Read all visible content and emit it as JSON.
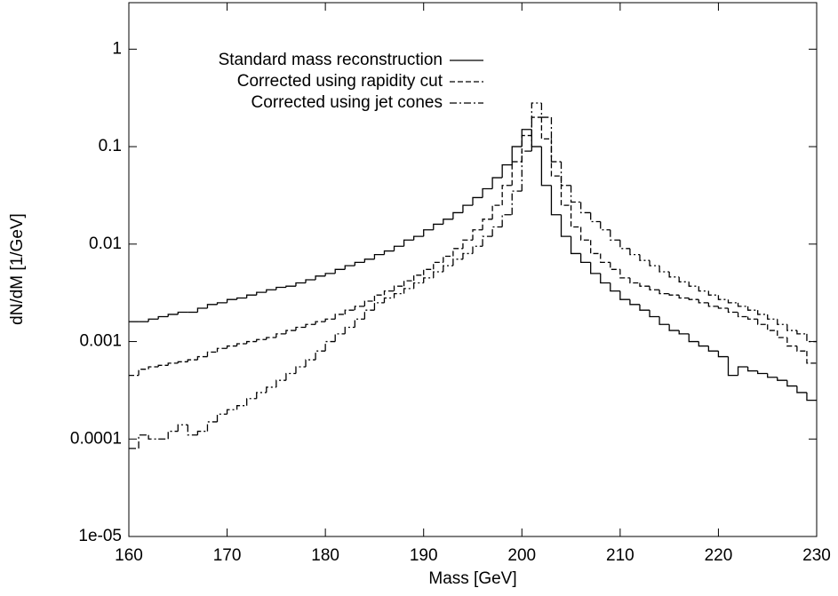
{
  "chart_data": {
    "type": "histogram",
    "xlabel": "Mass [GeV]",
    "ylabel": "dN/dM [1/GeV]",
    "log_y": true,
    "legend": "upper left",
    "xlim": [
      160,
      230
    ],
    "xticks": [
      160,
      170,
      180,
      190,
      200,
      210,
      220,
      230
    ],
    "ylim": [
      1e-05,
      3
    ],
    "yticks": [
      1,
      0.1,
      0.01,
      0.001,
      0.0001,
      {
        "value": 1e-05,
        "label": "1e-05"
      }
    ],
    "bins": [
      160,
      161,
      162,
      163,
      164,
      165,
      166,
      167,
      168,
      169,
      170,
      171,
      172,
      173,
      174,
      175,
      176,
      177,
      178,
      179,
      180,
      181,
      182,
      183,
      184,
      185,
      186,
      187,
      188,
      189,
      190,
      191,
      192,
      193,
      194,
      195,
      196,
      197,
      198,
      199,
      200,
      201,
      202,
      203,
      204,
      205,
      206,
      207,
      208,
      209,
      210,
      211,
      212,
      213,
      214,
      215,
      216,
      217,
      218,
      219,
      220,
      221,
      222,
      223,
      224,
      225,
      226,
      227,
      228,
      229,
      230
    ],
    "series": [
      {
        "name": "Standard mass reconstruction",
        "color": "#000000",
        "line_style": "solid",
        "values": [
          0.0016,
          0.0016,
          0.0017,
          0.0018,
          0.0019,
          0.002,
          0.002,
          0.0022,
          0.0024,
          0.0025,
          0.0027,
          0.0028,
          0.003,
          0.0032,
          0.0034,
          0.0036,
          0.0037,
          0.004,
          0.0043,
          0.0047,
          0.005,
          0.0055,
          0.006,
          0.0065,
          0.007,
          0.0078,
          0.0085,
          0.0095,
          0.011,
          0.012,
          0.014,
          0.016,
          0.018,
          0.021,
          0.025,
          0.03,
          0.037,
          0.048,
          0.065,
          0.1,
          0.15,
          0.1,
          0.04,
          0.02,
          0.012,
          0.008,
          0.0065,
          0.005,
          0.004,
          0.0033,
          0.0027,
          0.0024,
          0.0021,
          0.0018,
          0.0015,
          0.0013,
          0.0012,
          0.001,
          0.0009,
          0.0008,
          0.0007,
          0.00045,
          0.00055,
          0.0005,
          0.00047,
          0.00043,
          0.0004,
          0.00035,
          0.0003,
          0.00025
        ]
      },
      {
        "name": "Corrected using rapidity cut",
        "color": "#000000",
        "line_style": "dashed",
        "values": [
          0.00045,
          0.00052,
          0.00055,
          0.00057,
          0.0006,
          0.00062,
          0.00065,
          0.0007,
          0.00078,
          0.00085,
          0.0009,
          0.00095,
          0.001,
          0.00105,
          0.0011,
          0.0012,
          0.0013,
          0.0014,
          0.0015,
          0.0016,
          0.0017,
          0.0019,
          0.0021,
          0.0023,
          0.0026,
          0.003,
          0.0033,
          0.0037,
          0.0042,
          0.0048,
          0.0055,
          0.0065,
          0.0075,
          0.009,
          0.011,
          0.014,
          0.018,
          0.025,
          0.04,
          0.07,
          0.13,
          0.2,
          0.12,
          0.05,
          0.025,
          0.015,
          0.011,
          0.008,
          0.0065,
          0.0055,
          0.0045,
          0.004,
          0.0037,
          0.0034,
          0.0031,
          0.003,
          0.0028,
          0.0027,
          0.0025,
          0.0023,
          0.0022,
          0.002,
          0.0018,
          0.0017,
          0.0015,
          0.0013,
          0.0011,
          0.0009,
          0.0008,
          0.0006
        ]
      },
      {
        "name": "Corrected using jet cones",
        "color": "#000000",
        "line_style": "dashdot",
        "values": [
          8e-05,
          0.00011,
          0.0001,
          0.0001,
          0.00012,
          0.00014,
          0.00011,
          0.00012,
          0.00015,
          0.00018,
          0.0002,
          0.00022,
          0.00026,
          0.0003,
          0.00034,
          0.0004,
          0.00047,
          0.00055,
          0.00065,
          0.0008,
          0.001,
          0.0012,
          0.0014,
          0.0017,
          0.0021,
          0.0025,
          0.0028,
          0.0031,
          0.0035,
          0.004,
          0.0045,
          0.0052,
          0.006,
          0.007,
          0.008,
          0.0095,
          0.012,
          0.015,
          0.02,
          0.035,
          0.09,
          0.28,
          0.2,
          0.07,
          0.04,
          0.027,
          0.021,
          0.017,
          0.014,
          0.011,
          0.009,
          0.0078,
          0.0068,
          0.006,
          0.0052,
          0.0046,
          0.0041,
          0.0037,
          0.0033,
          0.003,
          0.0027,
          0.0025,
          0.0023,
          0.0021,
          0.0019,
          0.0017,
          0.0015,
          0.0013,
          0.0012,
          0.001
        ]
      }
    ]
  }
}
